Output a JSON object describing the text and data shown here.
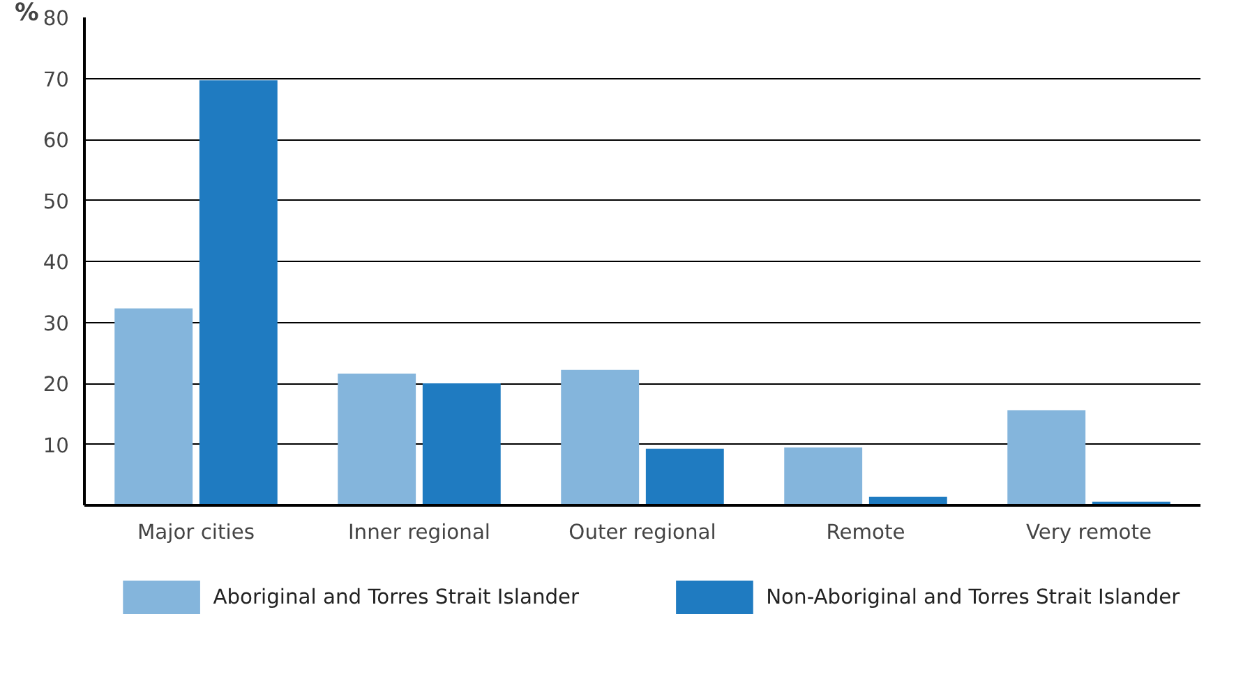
{
  "chart_data": {
    "type": "bar",
    "ylabel": "%",
    "categories": [
      "Major cities",
      "Inner regional",
      "Outer regional",
      "Remote",
      "Very remote"
    ],
    "series": [
      {
        "name": "Aboriginal and Torres Strait Islander",
        "color": "#84b5dc",
        "values": [
          32.3,
          21.6,
          22.2,
          9.5,
          15.6
        ]
      },
      {
        "name": "Non-Aboriginal and Torres Strait Islander",
        "color": "#1f7bc1",
        "values": [
          69.7,
          20.0,
          9.3,
          1.4,
          0.6
        ]
      }
    ],
    "ylim": [
      0,
      80
    ],
    "yticks": [
      10,
      20,
      30,
      40,
      50,
      60,
      70,
      80
    ],
    "grid": "y",
    "legend": "bottom"
  }
}
